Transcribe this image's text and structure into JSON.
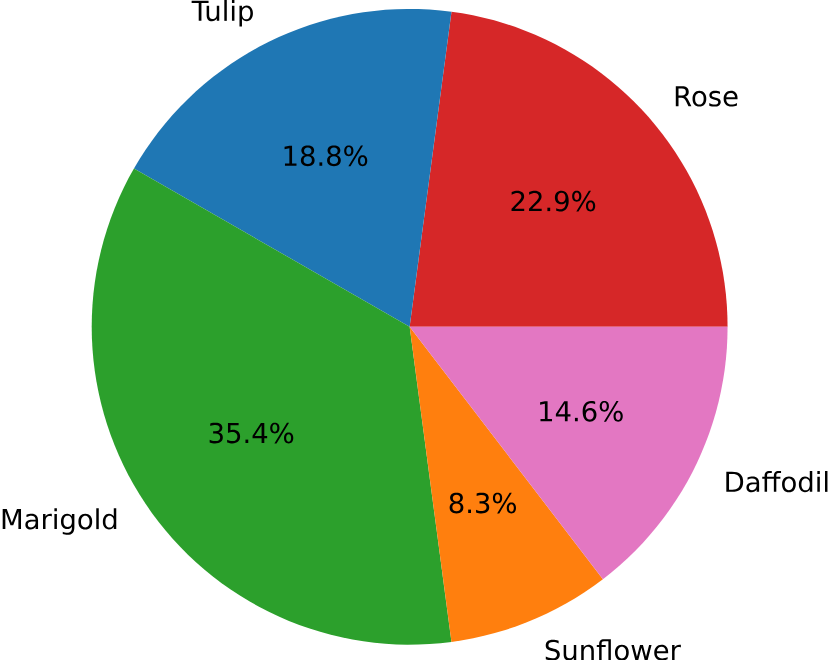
{
  "chart_data": {
    "type": "pie",
    "categories": [
      "Rose",
      "Tulip",
      "Marigold",
      "Sunflower",
      "Daffodil"
    ],
    "values": [
      22.9,
      18.8,
      35.4,
      8.3,
      14.6
    ],
    "value_labels": [
      "22.9%",
      "18.8%",
      "35.4%",
      "8.3%",
      "14.6%"
    ],
    "colors": [
      "#d62728",
      "#1f77b4",
      "#2ca02c",
      "#ff7f0e",
      "#e377c2"
    ]
  }
}
